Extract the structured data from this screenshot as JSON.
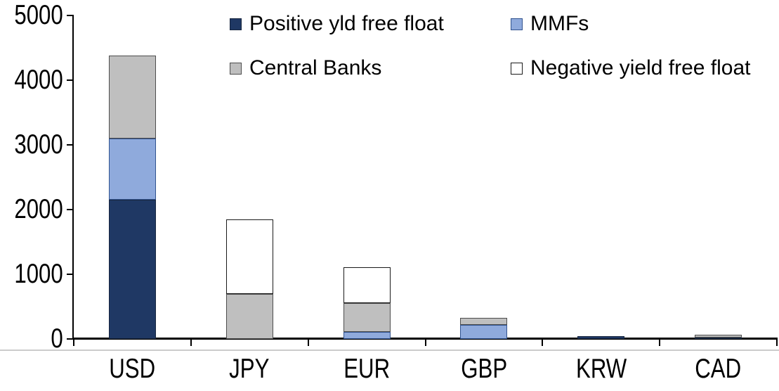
{
  "chart_data": {
    "type": "bar",
    "stacked": true,
    "title": "",
    "xlabel": "",
    "ylabel": "",
    "categories": [
      "USD",
      "JPY",
      "EUR",
      "GBP",
      "KRW",
      "CAD"
    ],
    "series": [
      {
        "name": "Positive yld free float",
        "color": "#1F3864",
        "border": "#17263F",
        "values": [
          2150,
          0,
          0,
          0,
          45,
          25
        ]
      },
      {
        "name": "MMFs",
        "color": "#8FAADC",
        "border": "#31538F",
        "values": [
          950,
          0,
          110,
          220,
          0,
          0
        ]
      },
      {
        "name": "Central Banks",
        "color": "#BFBFBF",
        "border": "#4D4D4D",
        "values": [
          1280,
          700,
          440,
          110,
          0,
          35
        ]
      },
      {
        "name": "Negative yield free float",
        "color": "#FFFFFF",
        "border": "#1A1A1A",
        "values": [
          0,
          1150,
          560,
          0,
          0,
          0
        ]
      }
    ],
    "totals": {
      "USD": 4380,
      "JPY": 1850,
      "EUR": 1110,
      "GBP": 330,
      "KRW": 45,
      "CAD": 60
    },
    "ylim": [
      0,
      5000
    ],
    "ytick_step": 1000,
    "yticks": [
      "0",
      "1000",
      "2000",
      "3000",
      "4000",
      "5000"
    ],
    "grid": false,
    "legend_position": "top",
    "axis_color": "#000000"
  }
}
